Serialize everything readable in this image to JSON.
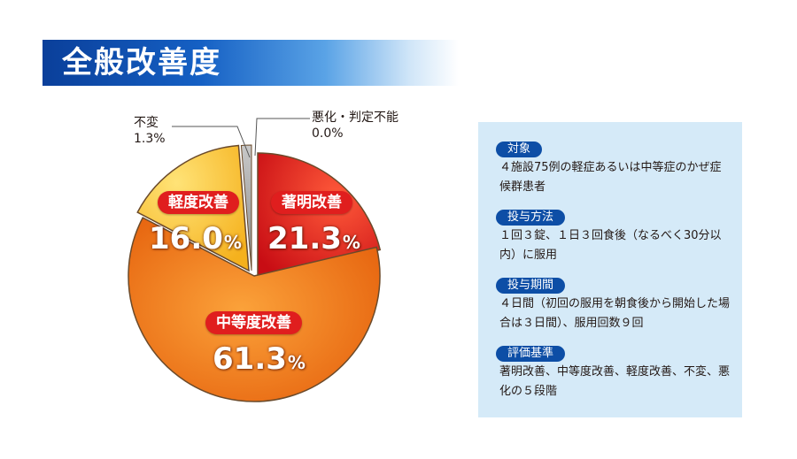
{
  "title": "全般改善度",
  "chart_data": {
    "type": "pie",
    "categories": [
      "著明改善",
      "中等度改善",
      "軽度改善",
      "不変",
      "悪化・判定不能"
    ],
    "values": [
      21.3,
      61.3,
      16.0,
      1.3,
      0.0
    ],
    "value_labels": [
      "21.3",
      "61.3",
      "16.0",
      "1.3%",
      "0.0%"
    ],
    "unit": "%",
    "colors": [
      "#e41a1c",
      "#f07a10",
      "#fbc53a",
      "#9a9a9a",
      "#9a9a9a"
    ]
  },
  "info": {
    "sections": [
      {
        "label": "対象",
        "text": "４施設75例の軽症あるいは中等症のかぜ症候群患者"
      },
      {
        "label": "投与方法",
        "text": "１回３錠、１日３回食後（なるべく30分以内）に服用"
      },
      {
        "label": "投与期間",
        "text": "４日間（初回の服用を朝食後から開始した場合は３日間）、服用回数９回"
      },
      {
        "label": "評価基準",
        "text": "著明改善、中等度改善、軽度改善、不変、悪化の５段階"
      }
    ]
  }
}
